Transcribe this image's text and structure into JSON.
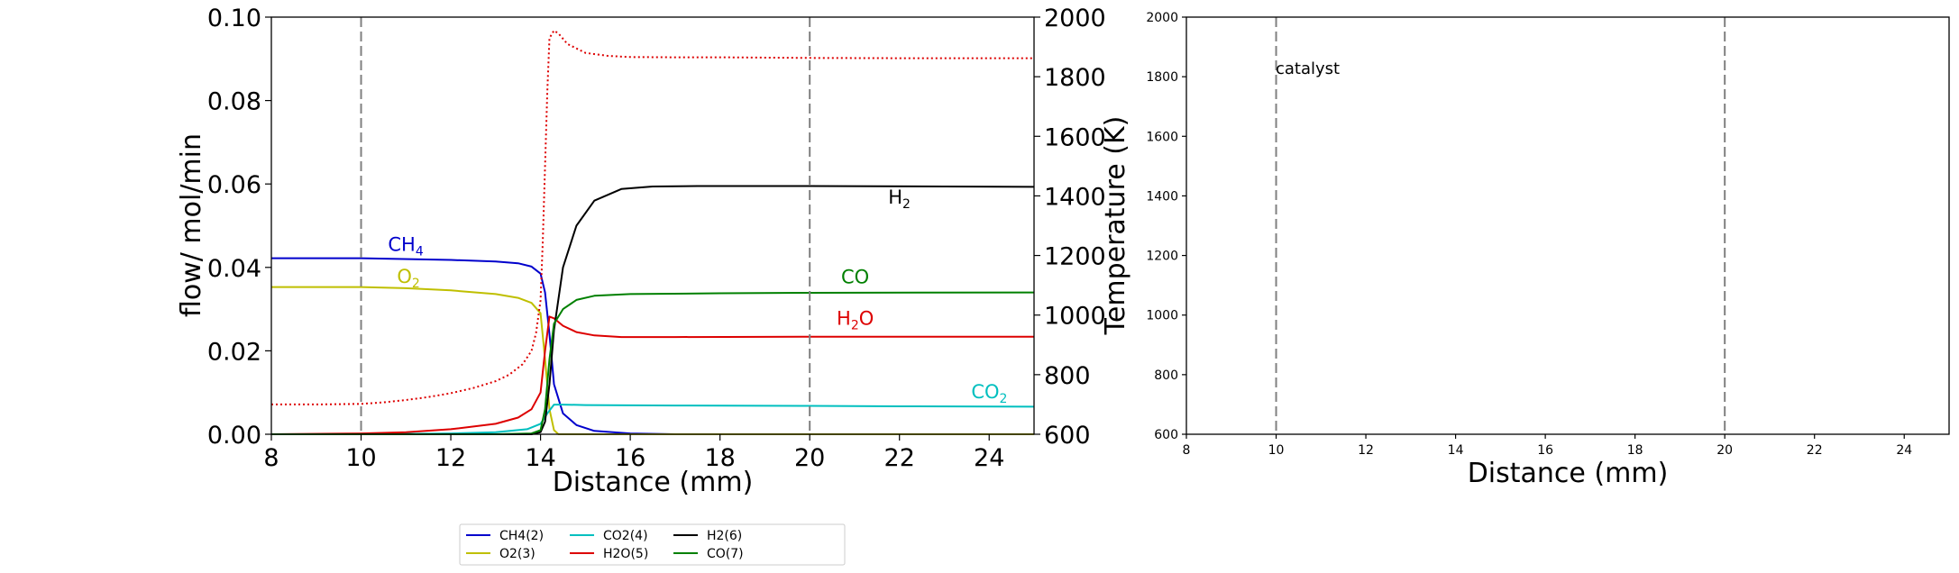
{
  "chart_data": [
    {
      "type": "line",
      "xlabel": "Distance (mm)",
      "ylabel": "flow/ mol/min",
      "y2label": "Temperature (K)",
      "xlim": [
        8,
        25
      ],
      "ylim": [
        0,
        0.1
      ],
      "y2lim": [
        600,
        2000
      ],
      "xticks": [
        "8",
        "10",
        "12",
        "14",
        "16",
        "18",
        "20",
        "22",
        "24"
      ],
      "yticks": [
        "0.00",
        "0.02",
        "0.04",
        "0.06",
        "0.08",
        "0.10"
      ],
      "y2ticks": [
        "600",
        "800",
        "1000",
        "1200",
        "1400",
        "1600",
        "1800",
        "2000"
      ],
      "catalyst_bounds": [
        10,
        20
      ],
      "grid": false,
      "series": [
        {
          "name": "CH4(2)",
          "color": "#0000cc",
          "x": [
            8,
            10,
            12,
            13,
            13.5,
            13.8,
            14.0,
            14.1,
            14.2,
            14.3,
            14.5,
            14.8,
            15.2,
            16,
            17,
            25
          ],
          "y": [
            0.0422,
            0.0422,
            0.0418,
            0.0414,
            0.041,
            0.0402,
            0.0385,
            0.034,
            0.024,
            0.012,
            0.005,
            0.0022,
            0.0008,
            0.0002,
            0.0,
            0.0
          ]
        },
        {
          "name": "O2(3)",
          "color": "#bfbf00",
          "x": [
            8,
            10,
            11,
            12,
            13,
            13.5,
            13.8,
            14.0,
            14.1,
            14.2,
            14.3,
            14.4,
            25
          ],
          "y": [
            0.0353,
            0.0353,
            0.035,
            0.0345,
            0.0336,
            0.0327,
            0.0315,
            0.029,
            0.018,
            0.006,
            0.001,
            0.0,
            0.0
          ]
        },
        {
          "name": "CO2(4)",
          "color": "#00bfbf",
          "x": [
            8,
            10,
            12,
            13,
            13.7,
            14.0,
            14.15,
            14.3,
            14.5,
            15,
            17,
            20,
            22,
            25
          ],
          "y": [
            0.0,
            0.0,
            0.0002,
            0.0005,
            0.0012,
            0.0025,
            0.005,
            0.0071,
            0.0071,
            0.007,
            0.0069,
            0.0068,
            0.0067,
            0.0066
          ]
        },
        {
          "name": "H2O(5)",
          "color": "#dd0000",
          "x": [
            8,
            10,
            11,
            12,
            13,
            13.5,
            13.8,
            14.0,
            14.1,
            14.2,
            14.3,
            14.5,
            14.8,
            15.2,
            15.8,
            17,
            20,
            25
          ],
          "y": [
            0.0,
            0.0002,
            0.0005,
            0.0012,
            0.0025,
            0.004,
            0.006,
            0.01,
            0.02,
            0.0282,
            0.0278,
            0.026,
            0.0245,
            0.0237,
            0.0233,
            0.0233,
            0.0234,
            0.0234
          ]
        },
        {
          "name": "H2(6)",
          "color": "#000000",
          "x": [
            8,
            10,
            12,
            13,
            13.8,
            14.0,
            14.1,
            14.2,
            14.3,
            14.5,
            14.8,
            15.2,
            15.8,
            16.5,
            17.5,
            20,
            25
          ],
          "y": [
            0.0,
            0.0,
            0.0,
            0.0,
            0.0,
            0.0005,
            0.003,
            0.012,
            0.025,
            0.04,
            0.05,
            0.056,
            0.0588,
            0.0594,
            0.0595,
            0.0595,
            0.0593
          ]
        },
        {
          "name": "CO(7)",
          "color": "#008000",
          "x": [
            8,
            10,
            12,
            13,
            13.8,
            14.0,
            14.1,
            14.2,
            14.3,
            14.5,
            14.8,
            15.2,
            16,
            18,
            20,
            25
          ],
          "y": [
            0.0,
            0.0,
            0.0,
            0.0,
            0.0002,
            0.001,
            0.006,
            0.018,
            0.0265,
            0.03,
            0.0322,
            0.0332,
            0.0336,
            0.0338,
            0.0339,
            0.034
          ]
        },
        {
          "name": "Temperature",
          "axis": "right",
          "color": "#dd0000",
          "dash": "dotted",
          "x": [
            8,
            9,
            10,
            10.5,
            11,
            11.5,
            12,
            12.5,
            13,
            13.3,
            13.6,
            13.8,
            13.9,
            14.0,
            14.05,
            14.1,
            14.15,
            14.2,
            14.3,
            14.4,
            14.6,
            15,
            15.5,
            16,
            17,
            18,
            20,
            22,
            25
          ],
          "y": [
            700,
            700,
            702,
            707,
            715,
            725,
            738,
            755,
            778,
            800,
            835,
            880,
            940,
            1050,
            1250,
            1500,
            1750,
            1930,
            1955,
            1945,
            1910,
            1880,
            1870,
            1866,
            1865,
            1865,
            1863,
            1862,
            1862
          ]
        }
      ],
      "annotations": [
        {
          "base": "CH",
          "sub": "4",
          "color": "#0000cc",
          "x": 10.6,
          "y": 0.044
        },
        {
          "base": "O",
          "sub": "2",
          "color": "#bfbf00",
          "x": 10.8,
          "y": 0.0363
        },
        {
          "base": "H",
          "sub": "2",
          "color": "#000000",
          "x": 21.75,
          "y": 0.0553
        },
        {
          "base": "CO",
          "sub": "",
          "color": "#008000",
          "x": 20.7,
          "y": 0.0362
        },
        {
          "base": "H",
          "sub": "2",
          "tail": "O",
          "color": "#dd0000",
          "x": 20.6,
          "y": 0.0262
        },
        {
          "base": "CO",
          "sub": "2",
          "color": "#00bfbf",
          "x": 23.6,
          "y": 0.0086
        }
      ]
    },
    {
      "type": "line",
      "xlabel": "Distance (mm)",
      "xlim": [
        8,
        25
      ],
      "ylim": [
        600,
        2000
      ],
      "xticks": [
        "8",
        "10",
        "12",
        "14",
        "16",
        "18",
        "20",
        "22",
        "24"
      ],
      "yticks": [
        "600",
        "800",
        "1000",
        "1200",
        "1400",
        "1600",
        "1800",
        "2000"
      ],
      "catalyst_bounds": [
        10,
        20
      ],
      "catalyst_label": "catalyst",
      "series": []
    }
  ],
  "legend": {
    "placement": "bottom-center",
    "ncol": 4,
    "entries": [
      {
        "label": "CH4(2)",
        "color": "#0000cc"
      },
      {
        "label": "O2(3)",
        "color": "#bfbf00"
      },
      {
        "label": "CO2(4)",
        "color": "#00bfbf"
      },
      {
        "label": "H2O(5)",
        "color": "#dd0000"
      },
      {
        "label": "H2(6)",
        "color": "#000000"
      },
      {
        "label": "CO(7)",
        "color": "#008000"
      }
    ]
  }
}
